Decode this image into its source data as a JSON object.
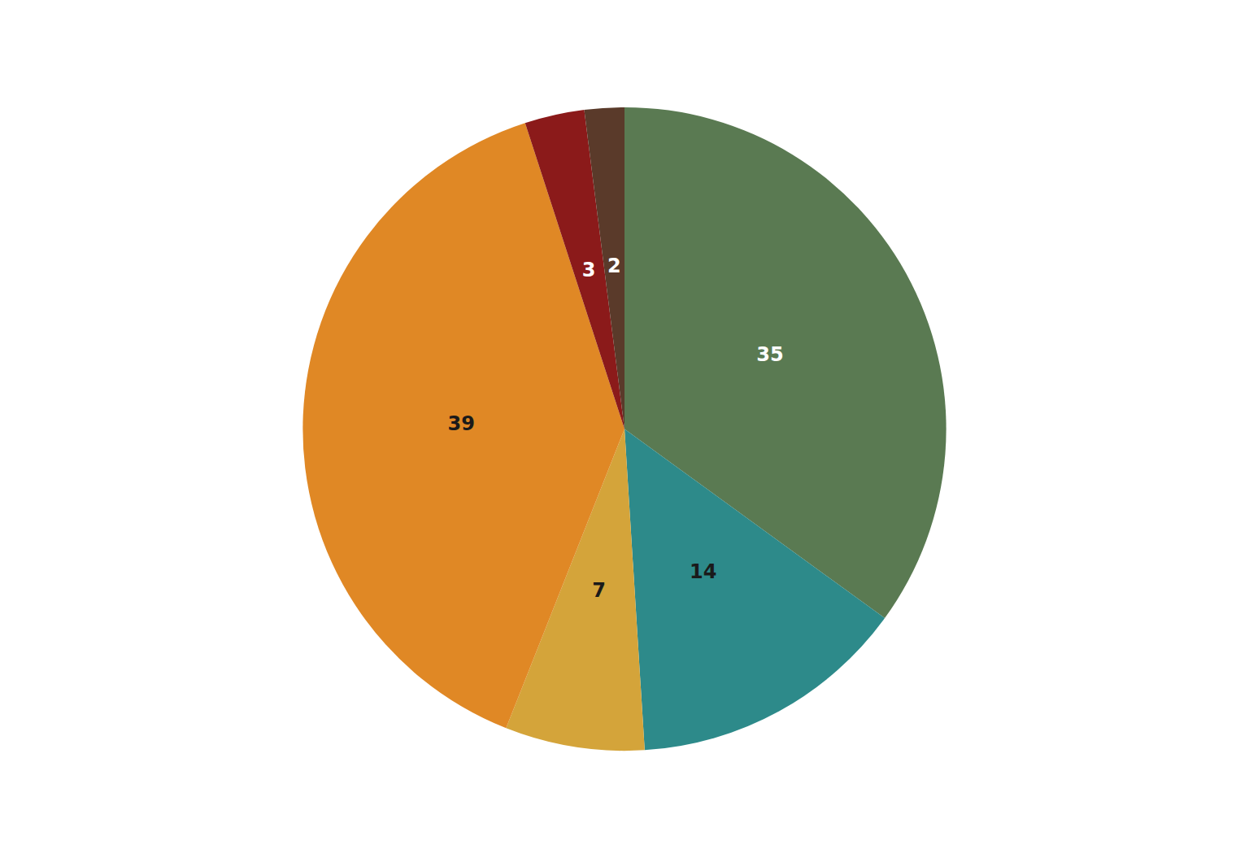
{
  "chart_data": {
    "type": "pie",
    "values": [
      35,
      14,
      7,
      39,
      3,
      2
    ],
    "colors": [
      "#5a7a52",
      "#2d8a8a",
      "#d4a43a",
      "#e08825",
      "#8b1a1a",
      "#5a3a2a"
    ],
    "data_labels": true
  }
}
